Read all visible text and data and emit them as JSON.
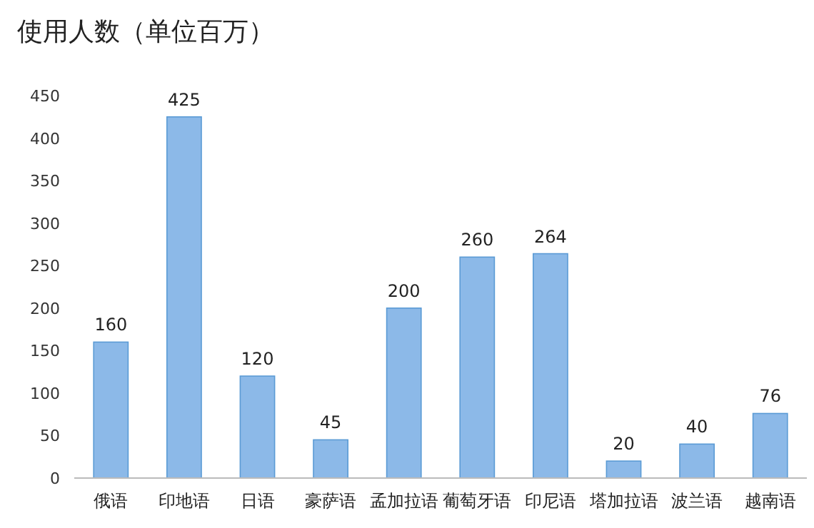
{
  "chart_data": {
    "type": "bar",
    "title": "使用人数（单位百万）",
    "categories": [
      "俄语",
      "印地语",
      "日语",
      "豪萨语",
      "孟加拉语",
      "葡萄牙语",
      "印尼语",
      "塔加拉语",
      "波兰语",
      "越南语"
    ],
    "values": [
      160,
      425,
      120,
      45,
      200,
      260,
      264,
      20,
      40,
      76
    ],
    "color": "#8cb9e8",
    "ylim": [
      0,
      450
    ],
    "yticks": [
      0,
      50,
      100,
      150,
      200,
      250,
      300,
      350,
      400,
      450
    ],
    "data_labels": true
  }
}
